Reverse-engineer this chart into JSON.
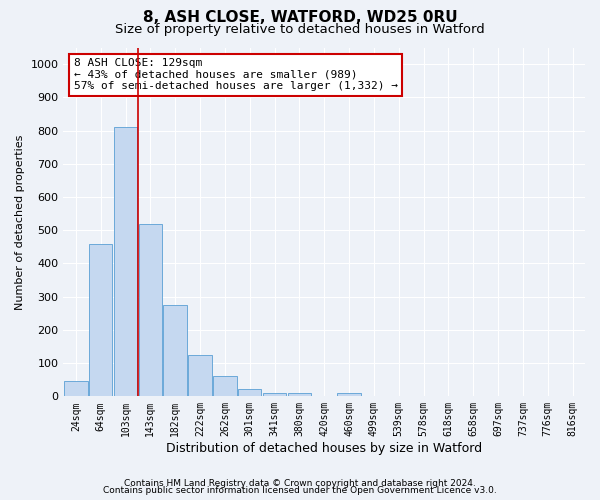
{
  "title1": "8, ASH CLOSE, WATFORD, WD25 0RU",
  "title2": "Size of property relative to detached houses in Watford",
  "xlabel": "Distribution of detached houses by size in Watford",
  "ylabel": "Number of detached properties",
  "footer1": "Contains HM Land Registry data © Crown copyright and database right 2024.",
  "footer2": "Contains public sector information licensed under the Open Government Licence v3.0.",
  "categories": [
    "24sqm",
    "64sqm",
    "103sqm",
    "143sqm",
    "182sqm",
    "222sqm",
    "262sqm",
    "301sqm",
    "341sqm",
    "380sqm",
    "420sqm",
    "460sqm",
    "499sqm",
    "539sqm",
    "578sqm",
    "618sqm",
    "658sqm",
    "697sqm",
    "737sqm",
    "776sqm",
    "816sqm"
  ],
  "values": [
    45,
    460,
    810,
    520,
    275,
    125,
    60,
    22,
    10,
    10,
    0,
    10,
    0,
    0,
    0,
    0,
    0,
    0,
    0,
    0,
    0
  ],
  "bar_color": "#c5d8f0",
  "bar_edge_color": "#5a9fd4",
  "property_line_color": "#cc0000",
  "annotation_line1": "8 ASH CLOSE: 129sqm",
  "annotation_line2": "← 43% of detached houses are smaller (989)",
  "annotation_line3": "57% of semi-detached houses are larger (1,332) →",
  "annotation_box_color": "#ffffff",
  "annotation_box_edge": "#cc0000",
  "ylim": [
    0,
    1050
  ],
  "yticks": [
    0,
    100,
    200,
    300,
    400,
    500,
    600,
    700,
    800,
    900,
    1000
  ],
  "background_color": "#eef2f8",
  "grid_color": "#ffffff",
  "title1_fontsize": 11,
  "title2_fontsize": 9.5,
  "xlabel_fontsize": 9,
  "ylabel_fontsize": 8,
  "tick_fontsize": 8,
  "xtick_fontsize": 7
}
